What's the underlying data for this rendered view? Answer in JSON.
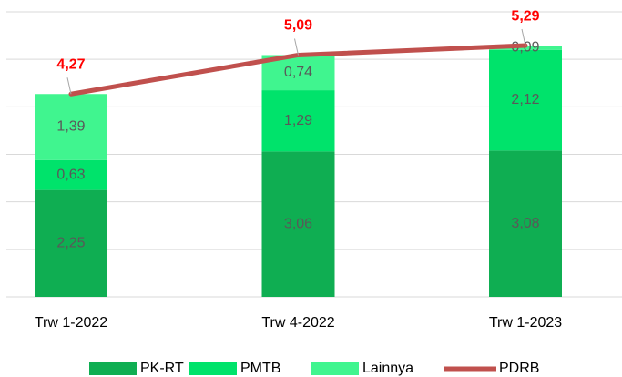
{
  "chart_data": {
    "type": "bar",
    "categories": [
      "Trw 1-2022",
      "Trw 4-2022",
      "Trw 1-2023"
    ],
    "ylim": [
      0,
      6
    ],
    "yticks": [
      0,
      1,
      2,
      3,
      4,
      5,
      6
    ],
    "grid": true,
    "stacked": true,
    "series": [
      {
        "name": "PK-RT",
        "color": "#0fae52",
        "values": [
          2.25,
          3.06,
          3.08
        ],
        "value_labels": [
          "2,25",
          "3,06",
          "3,08"
        ]
      },
      {
        "name": "PMTB",
        "color": "#00e36b",
        "values": [
          0.63,
          1.29,
          2.12
        ],
        "value_labels": [
          "0,63",
          "1,29",
          "2,12"
        ]
      },
      {
        "name": "Lainnya",
        "color": "#40f58f",
        "values": [
          1.39,
          0.74,
          0.09
        ],
        "value_labels": [
          "1,39",
          "0,74",
          "0,09"
        ]
      },
      {
        "name": "PDRB",
        "type": "line",
        "color": "#c0504d",
        "values": [
          4.27,
          5.09,
          5.29
        ],
        "value_labels": [
          "4,27",
          "5,09",
          "5,29"
        ]
      }
    ]
  }
}
